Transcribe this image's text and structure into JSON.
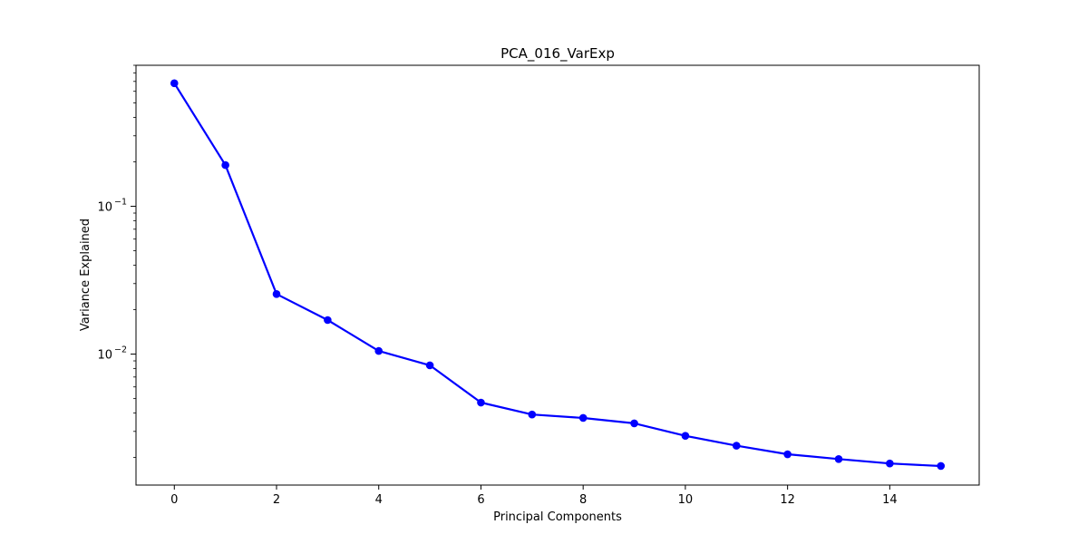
{
  "chart_data": {
    "type": "line",
    "title": "PCA_016_VarExp",
    "xlabel": "Principal Components",
    "ylabel": "Variance Explained",
    "yscale": "log",
    "xlim": [
      -0.75,
      15.75
    ],
    "ylim": [
      0.0013,
      0.9
    ],
    "x_ticks": [
      0,
      2,
      4,
      6,
      8,
      10,
      12,
      14
    ],
    "x_tick_labels": [
      "0",
      "2",
      "4",
      "6",
      "8",
      "10",
      "12",
      "14"
    ],
    "y_major_ticks": [
      0.01,
      0.1
    ],
    "y_tick_labels": [
      {
        "base": "10",
        "exp": "−2"
      },
      {
        "base": "10",
        "exp": "−1"
      }
    ],
    "series": [
      {
        "name": "Variance Explained",
        "color": "#0000ff",
        "marker": "circle",
        "x": [
          0,
          1,
          2,
          3,
          4,
          5,
          6,
          7,
          8,
          9,
          10,
          11,
          12,
          13,
          14,
          15
        ],
        "values": [
          0.68,
          0.19,
          0.0255,
          0.017,
          0.0105,
          0.0084,
          0.0047,
          0.0039,
          0.0037,
          0.0034,
          0.0028,
          0.0024,
          0.0021,
          0.00195,
          0.00182,
          0.00175
        ]
      }
    ]
  }
}
